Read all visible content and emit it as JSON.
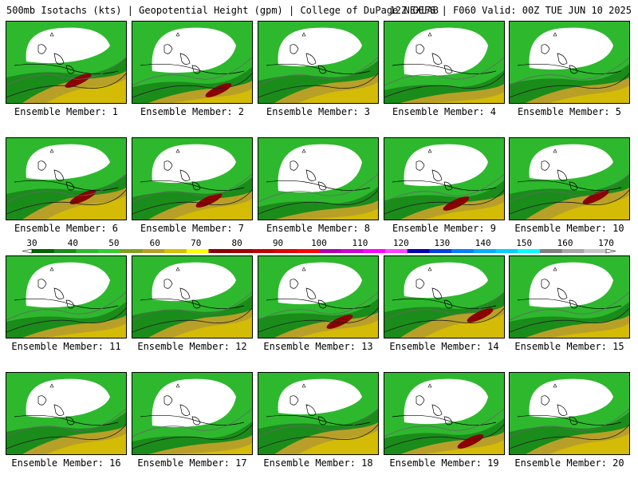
{
  "header": {
    "left": "500mb Isotachs (kts) | Geopotential Height (gpm) | College of DuPage NEXLAB",
    "right": "12Z GEFS | F060 Valid: 00Z TUE JUN 10 2025"
  },
  "colorbar": {
    "labels": [
      "30",
      "40",
      "50",
      "60",
      "70",
      "80",
      "90",
      "100",
      "110",
      "120",
      "130",
      "140",
      "150",
      "160",
      "170"
    ],
    "colors": [
      "#006400",
      "#1a8c1a",
      "#2eb82e",
      "#33cc33",
      "#80a020",
      "#b8a028",
      "#d8c000",
      "#ffff00",
      "#8b0000",
      "#a00000",
      "#c00000",
      "#e00000",
      "#ff0000",
      "#b000b0",
      "#d000d0",
      "#ff00ff",
      "#ff44ff",
      "#0000b0",
      "#0040e0",
      "#0080ff",
      "#00b0ff",
      "#00d0ff",
      "#00ffff",
      "#808080",
      "#a8a8a8",
      "#c8c8c8"
    ]
  },
  "panels": [
    {
      "label": "Ensemble Member: 1"
    },
    {
      "label": "Ensemble Member: 2"
    },
    {
      "label": "Ensemble Member: 3"
    },
    {
      "label": "Ensemble Member: 4"
    },
    {
      "label": "Ensemble Member: 5"
    },
    {
      "label": "Ensemble Member: 6"
    },
    {
      "label": "Ensemble Member: 7"
    },
    {
      "label": "Ensemble Member: 8"
    },
    {
      "label": "Ensemble Member: 9"
    },
    {
      "label": "Ensemble Member: 10"
    },
    {
      "label": "Ensemble Member: 11"
    },
    {
      "label": "Ensemble Member: 12"
    },
    {
      "label": "Ensemble Member: 13"
    },
    {
      "label": "Ensemble Member: 14"
    },
    {
      "label": "Ensemble Member: 15"
    },
    {
      "label": "Ensemble Member: 16"
    },
    {
      "label": "Ensemble Member: 17"
    },
    {
      "label": "Ensemble Member: 18"
    },
    {
      "label": "Ensemble Member: 19"
    },
    {
      "label": "Ensemble Member: 20"
    }
  ]
}
